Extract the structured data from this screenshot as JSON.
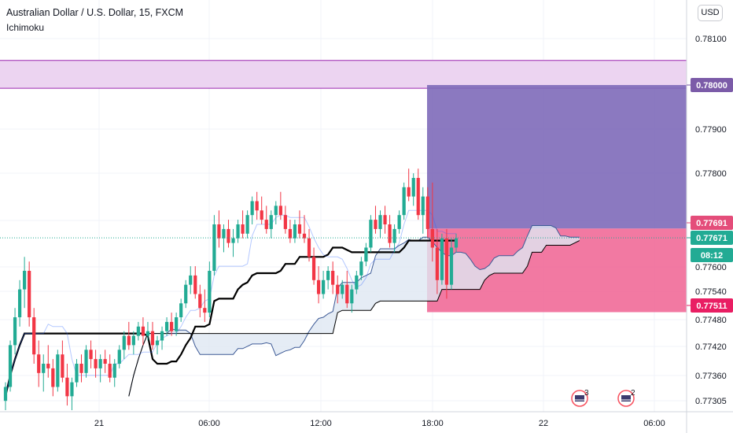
{
  "header": {
    "title": "Australian Dollar / U.S. Dollar, 15, FXCM",
    "indicator": "Ichimoku",
    "currency_button": "USD"
  },
  "price_tags": {
    "target": {
      "label": "0.78000",
      "color": "#7b5ba8"
    },
    "upper": {
      "label": "0.77691",
      "color": "#e44d7a"
    },
    "last": {
      "label": "0.77671",
      "color": "#22ab94"
    },
    "countdown": {
      "label": "08:12",
      "color": "#22ab94"
    },
    "stop": {
      "label": "0.77511",
      "color": "#e91e63"
    }
  },
  "events": [
    {
      "icon": "us-flag-icon",
      "count": "3"
    },
    {
      "icon": "us-flag-icon",
      "count": "2"
    }
  ],
  "chart_data": {
    "type": "candlestick",
    "title": "Australian Dollar / U.S. Dollar, 15, FXCM",
    "indicator": "Ichimoku",
    "y_ticks": [
      "0.78100",
      "0.78000",
      "0.77900",
      "0.77800",
      "0.77691",
      "0.77671",
      "0.77600",
      "0.77540",
      "0.77511",
      "0.77480",
      "0.77420",
      "0.77360",
      "0.77305"
    ],
    "x_ticks": [
      "21",
      "06:00",
      "12:00",
      "18:00",
      "22",
      "06:00"
    ],
    "ylim": [
      0.7729,
      0.7815
    ],
    "resistance_zone": [
      0.77993,
      0.78053
    ],
    "position": {
      "entry": 0.77691,
      "target": 0.78,
      "stop": 0.77511
    },
    "last_price": 0.77671,
    "colors": {
      "up": "#22ab94",
      "down": "#f23645",
      "cloud": "#dfe7f3",
      "baseline": "#000000"
    },
    "candles": [
      [
        0.7732,
        0.7736,
        0.773,
        0.7735
      ],
      [
        0.7735,
        0.7745,
        0.7734,
        0.7744
      ],
      [
        0.7744,
        0.7752,
        0.7742,
        0.775
      ],
      [
        0.775,
        0.7758,
        0.7748,
        0.7756
      ],
      [
        0.7756,
        0.7763,
        0.7752,
        0.776
      ],
      [
        0.776,
        0.7762,
        0.7748,
        0.775
      ],
      [
        0.775,
        0.7752,
        0.774,
        0.7742
      ],
      [
        0.7742,
        0.7745,
        0.7735,
        0.7738
      ],
      [
        0.7738,
        0.7742,
        0.7734,
        0.774
      ],
      [
        0.774,
        0.7744,
        0.7737,
        0.7739
      ],
      [
        0.7739,
        0.7741,
        0.7733,
        0.7735
      ],
      [
        0.7735,
        0.7743,
        0.7734,
        0.7742
      ],
      [
        0.7742,
        0.7745,
        0.7736,
        0.7737
      ],
      [
        0.7737,
        0.774,
        0.7731,
        0.7733
      ],
      [
        0.7733,
        0.7737,
        0.773,
        0.7736
      ],
      [
        0.7736,
        0.7741,
        0.7735,
        0.774
      ],
      [
        0.774,
        0.7742,
        0.7736,
        0.7738
      ],
      [
        0.7738,
        0.7744,
        0.7737,
        0.7743
      ],
      [
        0.7743,
        0.7745,
        0.7739,
        0.7741
      ],
      [
        0.7741,
        0.7743,
        0.7737,
        0.7739
      ],
      [
        0.7739,
        0.7742,
        0.7736,
        0.7741
      ],
      [
        0.7741,
        0.7743,
        0.7738,
        0.774
      ],
      [
        0.774,
        0.7742,
        0.7736,
        0.7737
      ],
      [
        0.7737,
        0.7741,
        0.7735,
        0.774
      ],
      [
        0.774,
        0.7744,
        0.7739,
        0.7743
      ],
      [
        0.7743,
        0.7747,
        0.7741,
        0.7746
      ],
      [
        0.7746,
        0.7749,
        0.7743,
        0.7744
      ],
      [
        0.7744,
        0.7747,
        0.7742,
        0.7746
      ],
      [
        0.7746,
        0.7749,
        0.7745,
        0.7748
      ],
      [
        0.7748,
        0.775,
        0.7744,
        0.7746
      ],
      [
        0.7746,
        0.7749,
        0.7745,
        0.7747
      ],
      [
        0.7747,
        0.7749,
        0.7743,
        0.7744
      ],
      [
        0.7744,
        0.7746,
        0.7742,
        0.7745
      ],
      [
        0.7745,
        0.7748,
        0.7743,
        0.7747
      ],
      [
        0.7747,
        0.775,
        0.7746,
        0.7749
      ],
      [
        0.7749,
        0.7751,
        0.7746,
        0.7747
      ],
      [
        0.7747,
        0.7751,
        0.7746,
        0.775
      ],
      [
        0.775,
        0.7754,
        0.7749,
        0.7753
      ],
      [
        0.7753,
        0.7758,
        0.7752,
        0.7757
      ],
      [
        0.7757,
        0.7761,
        0.7755,
        0.7759
      ],
      [
        0.7759,
        0.7761,
        0.7754,
        0.7755
      ],
      [
        0.7755,
        0.7757,
        0.775,
        0.7752
      ],
      [
        0.7752,
        0.7756,
        0.7749,
        0.7751
      ],
      [
        0.7751,
        0.7762,
        0.775,
        0.776
      ],
      [
        0.776,
        0.7772,
        0.7759,
        0.777
      ],
      [
        0.777,
        0.7773,
        0.7765,
        0.7767
      ],
      [
        0.7767,
        0.777,
        0.7764,
        0.7769
      ],
      [
        0.7769,
        0.7771,
        0.7765,
        0.7766
      ],
      [
        0.7766,
        0.7769,
        0.7763,
        0.7767
      ],
      [
        0.7767,
        0.7771,
        0.7766,
        0.777
      ],
      [
        0.777,
        0.7773,
        0.7767,
        0.7768
      ],
      [
        0.7768,
        0.7773,
        0.7767,
        0.7772
      ],
      [
        0.7772,
        0.7776,
        0.777,
        0.7775
      ],
      [
        0.7775,
        0.7777,
        0.7771,
        0.7773
      ],
      [
        0.7773,
        0.7776,
        0.777,
        0.7771
      ],
      [
        0.7771,
        0.7774,
        0.7768,
        0.7769
      ],
      [
        0.7769,
        0.7773,
        0.7767,
        0.7772
      ],
      [
        0.7772,
        0.7775,
        0.777,
        0.7774
      ],
      [
        0.7774,
        0.7777,
        0.7771,
        0.7772
      ],
      [
        0.7772,
        0.7774,
        0.7768,
        0.7769
      ],
      [
        0.7769,
        0.7771,
        0.7766,
        0.7767
      ],
      [
        0.7767,
        0.7771,
        0.7766,
        0.777
      ],
      [
        0.777,
        0.7773,
        0.7767,
        0.7768
      ],
      [
        0.7768,
        0.7772,
        0.7766,
        0.7767
      ],
      [
        0.7767,
        0.7769,
        0.7762,
        0.7763
      ],
      [
        0.7763,
        0.7765,
        0.7757,
        0.7758
      ],
      [
        0.7758,
        0.7761,
        0.7753,
        0.7755
      ],
      [
        0.7755,
        0.776,
        0.7754,
        0.7758
      ],
      [
        0.7758,
        0.7761,
        0.7756,
        0.776
      ],
      [
        0.776,
        0.7762,
        0.7755,
        0.7757
      ],
      [
        0.7757,
        0.7759,
        0.7753,
        0.7755
      ],
      [
        0.7755,
        0.7758,
        0.7754,
        0.7757
      ],
      [
        0.7757,
        0.776,
        0.7752,
        0.7753
      ],
      [
        0.7753,
        0.7757,
        0.7751,
        0.7756
      ],
      [
        0.7756,
        0.776,
        0.7755,
        0.7759
      ],
      [
        0.7759,
        0.7763,
        0.7758,
        0.7762
      ],
      [
        0.7762,
        0.7766,
        0.7761,
        0.7765
      ],
      [
        0.7765,
        0.7772,
        0.7764,
        0.7771
      ],
      [
        0.7771,
        0.7774,
        0.7768,
        0.7769
      ],
      [
        0.7769,
        0.7773,
        0.7767,
        0.7772
      ],
      [
        0.7772,
        0.7774,
        0.7768,
        0.777
      ],
      [
        0.777,
        0.7772,
        0.7765,
        0.7766
      ],
      [
        0.7766,
        0.777,
        0.7764,
        0.7769
      ],
      [
        0.7769,
        0.7773,
        0.7768,
        0.7772
      ],
      [
        0.7772,
        0.7779,
        0.7771,
        0.7778
      ],
      [
        0.7778,
        0.7782,
        0.7775,
        0.7776
      ],
      [
        0.7776,
        0.7781,
        0.7774,
        0.778
      ],
      [
        0.778,
        0.7782,
        0.7771,
        0.7772
      ],
      [
        0.7772,
        0.7778,
        0.7768,
        0.7776
      ],
      [
        0.7776,
        0.7778,
        0.7767,
        0.7769
      ],
      [
        0.7769,
        0.7779,
        0.7762,
        0.7765
      ],
      [
        0.7765,
        0.7769,
        0.7755,
        0.7758
      ],
      [
        0.7758,
        0.7768,
        0.7757,
        0.7767
      ],
      [
        0.7767,
        0.7769,
        0.7754,
        0.7757
      ],
      [
        0.7757,
        0.7767,
        0.7756,
        0.7765
      ],
      [
        0.7765,
        0.7768,
        0.7764,
        0.7767
      ]
    ]
  }
}
